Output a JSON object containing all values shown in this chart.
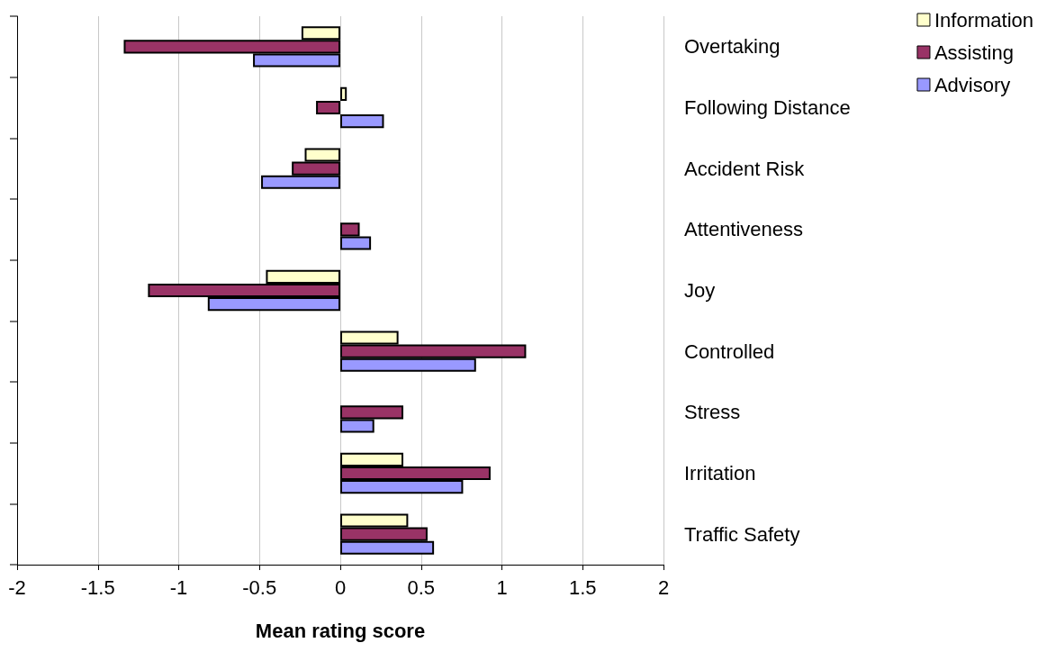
{
  "chart_data": {
    "type": "bar",
    "orientation": "horizontal",
    "xlabel": "Mean rating score",
    "categories": [
      "Overtaking",
      "Following Distance",
      "Accident Risk",
      "Attentiveness",
      "Joy",
      "Controlled",
      "Stress",
      "Irritation",
      "Traffic Safety"
    ],
    "series": [
      {
        "name": "Information",
        "color": "#ffffcc",
        "values": [
          -0.24,
          0.04,
          -0.22,
          null,
          -0.46,
          0.36,
          null,
          0.39,
          0.42
        ]
      },
      {
        "name": "Assisting",
        "color": "#993366",
        "values": [
          -1.34,
          -0.15,
          -0.3,
          0.12,
          -1.19,
          1.15,
          0.39,
          0.93,
          0.54
        ]
      },
      {
        "name": "Advisory",
        "color": "#9999ff",
        "values": [
          -0.54,
          0.27,
          -0.49,
          0.19,
          -0.82,
          0.84,
          0.21,
          0.76,
          0.58
        ]
      }
    ],
    "xlim": [
      -2,
      2
    ],
    "xticks": [
      -2,
      -1.5,
      -1,
      -0.5,
      0,
      0.5,
      1,
      1.5,
      2
    ],
    "grid": "x",
    "legend": "top right"
  }
}
